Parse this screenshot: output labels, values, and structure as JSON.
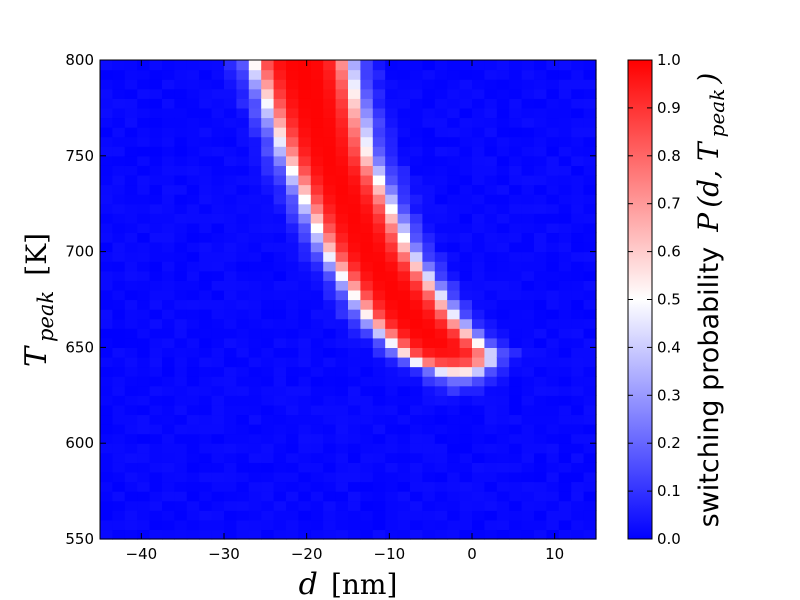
{
  "chart_data": {
    "type": "heatmap",
    "title": "",
    "xlabel": {
      "symbol": "d",
      "unit": "[nm]"
    },
    "ylabel": {
      "symbol": "T",
      "subscript": "peak",
      "unit": "[K]"
    },
    "xlim": [
      -45,
      15
    ],
    "ylim": [
      550,
      800
    ],
    "x_ticks": [
      -40,
      -30,
      -20,
      -10,
      0,
      10
    ],
    "y_ticks": [
      550,
      600,
      650,
      700,
      750,
      800
    ],
    "cell_width_nm": 1.5,
    "cell_height_K": 5,
    "colormap": {
      "name": "bwr",
      "low": "#0000ff",
      "mid": "#ffffff",
      "high": "#ff0000"
    },
    "colorbar": {
      "range": [
        0.0,
        1.0
      ],
      "ticks": [
        "0.0",
        "0.1",
        "0.2",
        "0.3",
        "0.4",
        "0.5",
        "0.6",
        "0.7",
        "0.8",
        "0.9",
        "1.0"
      ],
      "label_text": "switching probability",
      "label_math": {
        "symbol": "P",
        "args": "(d, T",
        "subscript": "peak",
        "close": ")"
      }
    },
    "switching_band": {
      "description_points": [
        {
          "T": 800,
          "d_low": -26.5,
          "d_high": -15
        },
        {
          "T": 750,
          "d_low": -22.5,
          "d_high": -12.5
        },
        {
          "T": 700,
          "d_low": -17.5,
          "d_high": -7.5
        },
        {
          "T": 665,
          "d_low": -12.5,
          "d_high": -2
        },
        {
          "T": 645,
          "d_low": -8,
          "d_high": 2.5
        },
        {
          "T": 636,
          "d_low": -4,
          "d_high": 1
        }
      ],
      "edge_width_nm": 2.0,
      "bottom_T": 636,
      "bottom_width_K": 7
    }
  }
}
